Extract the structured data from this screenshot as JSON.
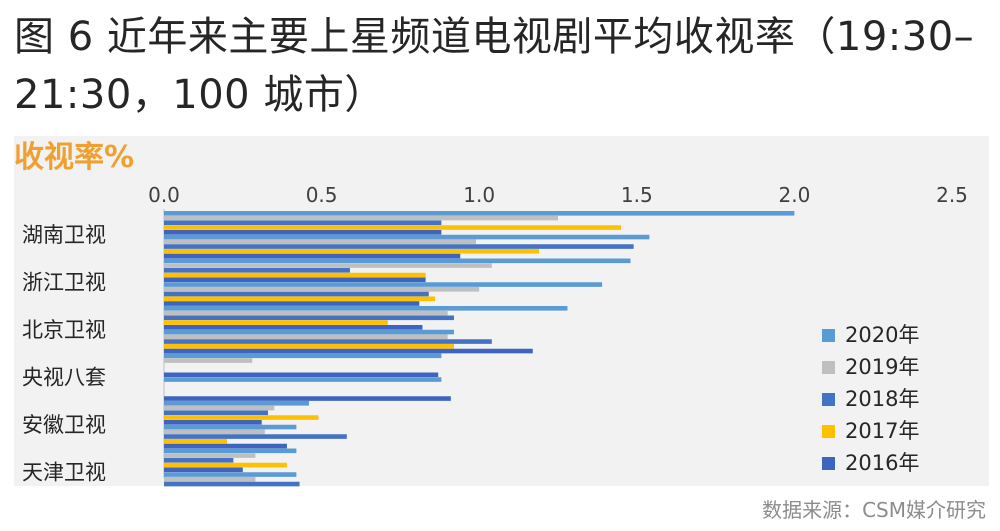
{
  "figure": {
    "title": "图 6  近年来主要上星频道电视剧平均收视率（19:30–21:30，100 城市）",
    "source": "数据来源：CSM媒介研究"
  },
  "chart_data": {
    "type": "bar",
    "orientation": "horizontal",
    "title": "",
    "xlabel": "收视率%",
    "ylabel": "",
    "xlim": [
      0,
      2.5
    ],
    "x_ticks": [
      "0.0",
      "0.5",
      "1.0",
      "1.5",
      "2.0",
      "2.5"
    ],
    "grid": false,
    "legend_position": "right",
    "categories": [
      "湖南卫视",
      "浙江卫视",
      "北京卫视",
      "央视八套",
      "安徽卫视",
      "天津卫视"
    ],
    "series": [
      {
        "name": "2020年",
        "color": "#5b9bd5",
        "values": [
          2.0,
          1.48,
          1.28,
          0.88,
          0.46,
          0.42
        ]
      },
      {
        "name": "2019年",
        "color": "#bfbfbf",
        "values": [
          1.25,
          1.04,
          0.9,
          0.28,
          0.35,
          0.29
        ]
      },
      {
        "name": "2018年",
        "color": "#4472c4",
        "values": [
          0.88,
          0.59,
          0.92,
          0.0,
          0.33,
          0.22
        ]
      },
      {
        "name": "2017年",
        "color": "#ffc000",
        "values": [
          1.45,
          0.83,
          0.71,
          0.0,
          0.49,
          0.39
        ]
      },
      {
        "name": "2016年",
        "color": "#3f64bf",
        "values": [
          0.88,
          0.83,
          0.82,
          0.87,
          0.31,
          0.25
        ]
      },
      {
        "name": "",
        "color": "#5b9bd5",
        "values": [
          1.54,
          1.39,
          0.92,
          0.88,
          0.42,
          0.42
        ]
      },
      {
        "name": "",
        "color": "#bfbfbf",
        "values": [
          0.99,
          1.0,
          0.9,
          0.0,
          0.32,
          0.29
        ]
      },
      {
        "name": "",
        "color": "#4472c4",
        "values": [
          1.49,
          0.84,
          1.04,
          0.0,
          0.58,
          0.43
        ]
      },
      {
        "name": "",
        "color": "#ffc000",
        "values": [
          1.19,
          0.86,
          0.92,
          0.0,
          0.2,
          0.0
        ]
      },
      {
        "name": "",
        "color": "#3f64bf",
        "values": [
          0.94,
          0.81,
          1.17,
          0.91,
          0.39,
          0.0
        ]
      }
    ]
  }
}
